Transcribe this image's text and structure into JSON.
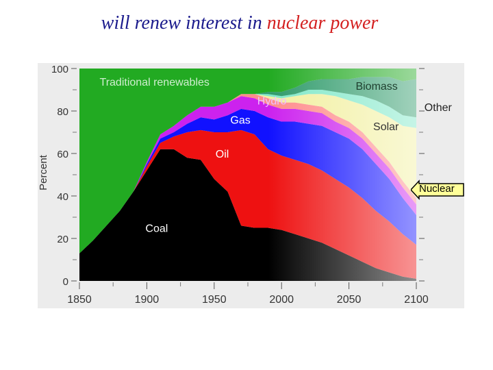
{
  "slide": {
    "title_part1": "will renew interest in ",
    "title_part2": "nuclear power"
  },
  "callout": {
    "label": "Nuclear"
  },
  "colors": {
    "title_blue": "#1a1a8c",
    "title_red": "#d42020",
    "traditional": "#22aa22",
    "coal": "#000000",
    "oil": "#ee1111",
    "gas": "#1111ff",
    "hydro": "#cc22ee",
    "nuclear": "#ff8c8c",
    "solar": "#f2f0a0",
    "other": "#7fe8c8",
    "biomass": "#2e9a6a",
    "callout_fill": "#ffff99"
  },
  "chart_data": {
    "type": "area",
    "stacked": true,
    "title": "",
    "xlabel": "",
    "ylabel": "Percent",
    "xlim": [
      1850,
      2100
    ],
    "ylim": [
      0,
      100
    ],
    "x_ticks": [
      1850,
      1900,
      1950,
      2000,
      2050,
      2100
    ],
    "y_ticks": [
      0,
      20,
      40,
      60,
      80,
      100
    ],
    "grid": false,
    "x": [
      1850,
      1860,
      1870,
      1880,
      1890,
      1900,
      1910,
      1920,
      1930,
      1940,
      1950,
      1960,
      1970,
      1980,
      1990,
      2000,
      2010,
      2020,
      2030,
      2040,
      2050,
      2060,
      2070,
      2080,
      2090,
      2100
    ],
    "series": [
      {
        "name": "Coal",
        "color": "#000000",
        "values": [
          13,
          19,
          26,
          33,
          42,
          52,
          62,
          62,
          58,
          57,
          48,
          42,
          26,
          25,
          25,
          24,
          22,
          20,
          18,
          15,
          12,
          9,
          6,
          4,
          2,
          1
        ]
      },
      {
        "name": "Oil",
        "color": "#ee1111",
        "values": [
          0,
          0,
          0,
          0,
          0,
          2,
          3,
          6,
          12,
          14,
          22,
          28,
          45,
          44,
          37,
          35,
          35,
          35,
          34,
          33,
          32,
          30,
          27,
          24,
          20,
          16
        ]
      },
      {
        "name": "Gas",
        "color": "#1111ff",
        "values": [
          0,
          0,
          0,
          0,
          0,
          1,
          2,
          2,
          4,
          6,
          6,
          8,
          10,
          11,
          15,
          16,
          18,
          19,
          21,
          22,
          23,
          23,
          22,
          20,
          17,
          14
        ]
      },
      {
        "name": "Hydro",
        "color": "#cc22ee",
        "values": [
          0,
          0,
          0,
          0,
          0,
          1,
          2,
          3,
          4,
          5,
          6,
          6,
          6,
          6,
          6,
          6,
          6,
          6,
          6,
          5,
          5,
          5,
          5,
          5,
          5,
          5
        ]
      },
      {
        "name": "Nuclear",
        "color": "#ff8c8c",
        "values": [
          0,
          0,
          0,
          0,
          0,
          0,
          0,
          0,
          0,
          0,
          0,
          0,
          1,
          2,
          3,
          3,
          3,
          3,
          3,
          3,
          3,
          3,
          3,
          3,
          3,
          3
        ]
      },
      {
        "name": "Solar",
        "color": "#f2f0a0",
        "values": [
          0,
          0,
          0,
          0,
          0,
          0,
          0,
          0,
          0,
          0,
          0,
          0,
          0,
          0,
          1,
          2,
          3,
          5,
          6,
          9,
          10,
          13,
          17,
          21,
          26,
          33
        ]
      },
      {
        "name": "Other",
        "color": "#7fe8c8",
        "values": [
          0,
          0,
          0,
          0,
          0,
          0,
          0,
          0,
          0,
          0,
          0,
          0,
          0,
          0,
          1,
          1,
          1,
          2,
          2,
          2,
          3,
          4,
          5,
          5,
          5,
          5
        ]
      },
      {
        "name": "Biomass",
        "color": "#2e9a6a",
        "values": [
          0,
          0,
          0,
          0,
          0,
          0,
          0,
          0,
          0,
          0,
          0,
          0,
          0,
          0,
          1,
          2,
          3,
          4,
          5,
          6,
          7,
          9,
          11,
          14,
          16,
          18
        ]
      },
      {
        "name": "Traditional renewables",
        "color": "#22aa22",
        "values": [
          87,
          81,
          74,
          67,
          58,
          44,
          31,
          27,
          22,
          18,
          18,
          16,
          12,
          12,
          11,
          11,
          9,
          6,
          5,
          5,
          5,
          4,
          4,
          4,
          6,
          5
        ]
      }
    ],
    "labels": [
      {
        "text": "Traditional renewables",
        "color": "#cfeecf",
        "x": 1865,
        "y": 92
      },
      {
        "text": "Hydro",
        "color": "#f0c0ff",
        "x": 1982,
        "y": 83
      },
      {
        "text": "Gas",
        "color": "#ffffff",
        "x": 1962,
        "y": 74
      },
      {
        "text": "Oil",
        "color": "#ffffff",
        "x": 1951,
        "y": 58
      },
      {
        "text": "Coal",
        "color": "#ffffff",
        "x": 1899,
        "y": 23
      },
      {
        "text": "Biomass",
        "color": "#1f3f2f",
        "x": 2055,
        "y": 90
      },
      {
        "text": "Solar",
        "color": "#333333",
        "x": 2068,
        "y": 71
      },
      {
        "text": "Other",
        "color": "#222222",
        "x": 2106,
        "y": 80
      }
    ]
  }
}
